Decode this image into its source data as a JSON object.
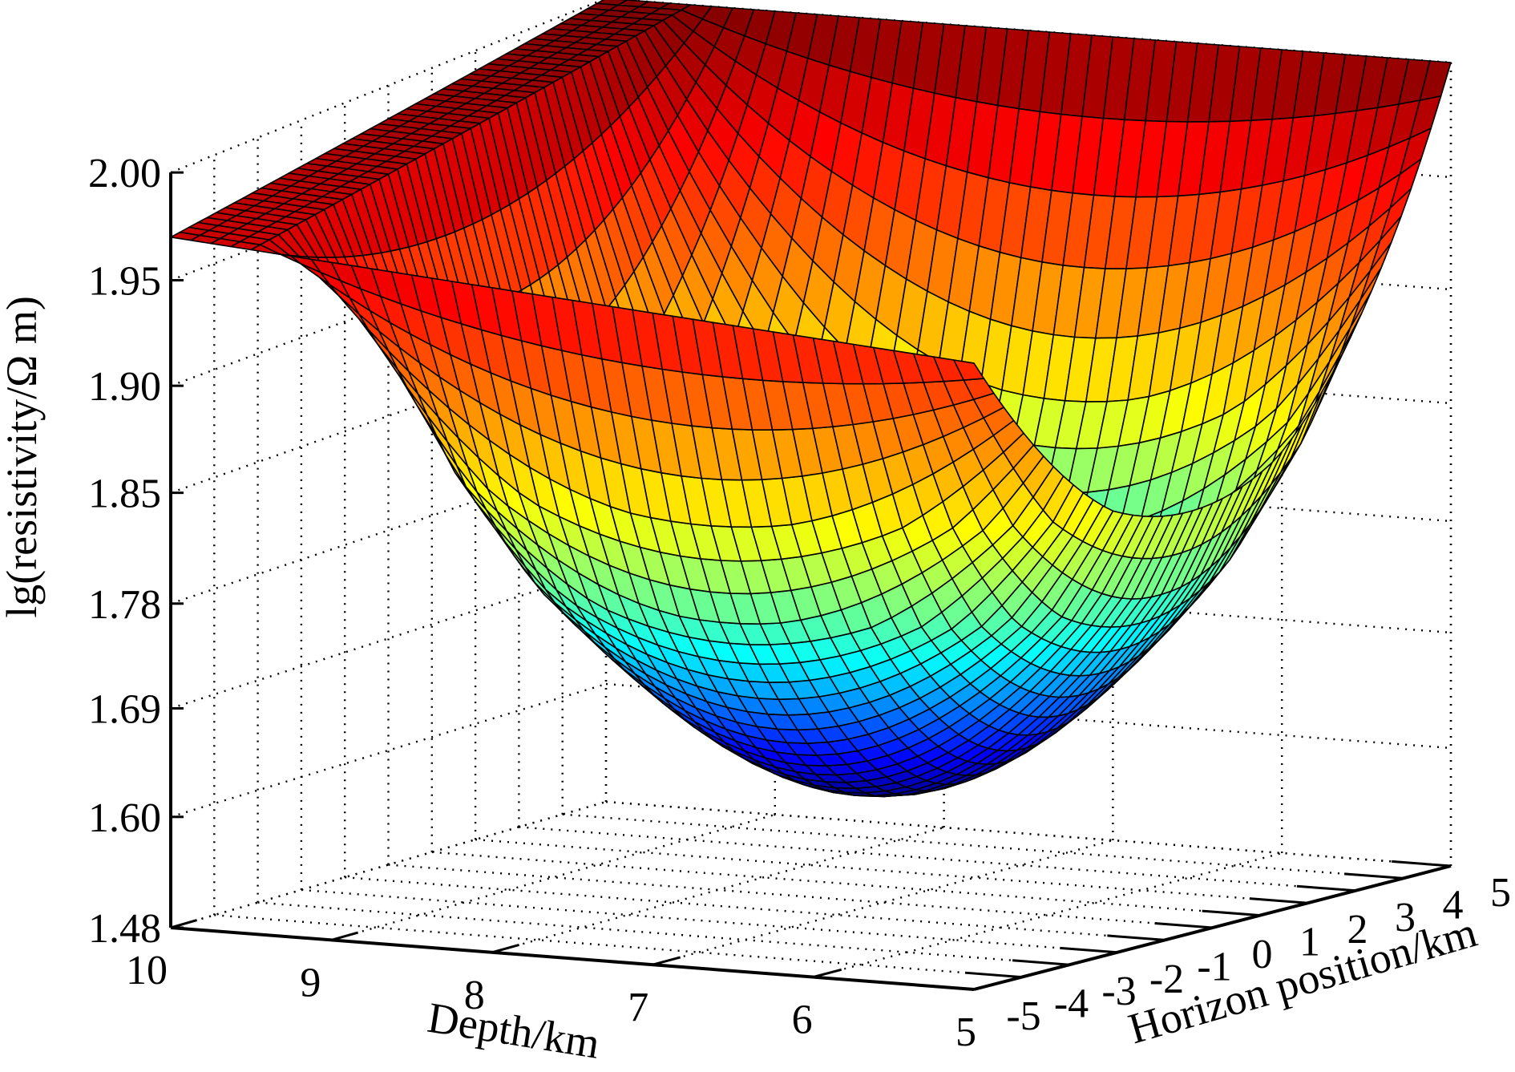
{
  "chart_data": {
    "type": "surface3d",
    "title": "",
    "xlabel": "Depth/km",
    "ylabel": "Horizon position/km",
    "zlabel": "lg(resistivity/Ω m)",
    "x_ticks": [
      "10",
      "9",
      "8",
      "7",
      "6",
      "5"
    ],
    "y_ticks": [
      "-5",
      "-4",
      "-3",
      "-2",
      "-1",
      "0",
      "1",
      "2",
      "3",
      "4",
      "5"
    ],
    "z_ticks": [
      "1.48",
      "1.60",
      "1.69",
      "1.78",
      "1.85",
      "1.90",
      "1.95",
      "2.00"
    ],
    "x_range": [
      5,
      10
    ],
    "y_range": [
      -5,
      5
    ],
    "z_range": [
      1.48,
      2.0
    ],
    "corner_values": {
      "depth10_pos-5": 1.97,
      "depth5_pos-5": 1.94,
      "depth10_pos5": 2.0,
      "depth5_pos5": 2.0
    },
    "minimum": {
      "depth": 7.0,
      "position": 0,
      "value": 1.595
    },
    "colormap": "jet",
    "grid": true,
    "box_grid_style": "dotted"
  }
}
